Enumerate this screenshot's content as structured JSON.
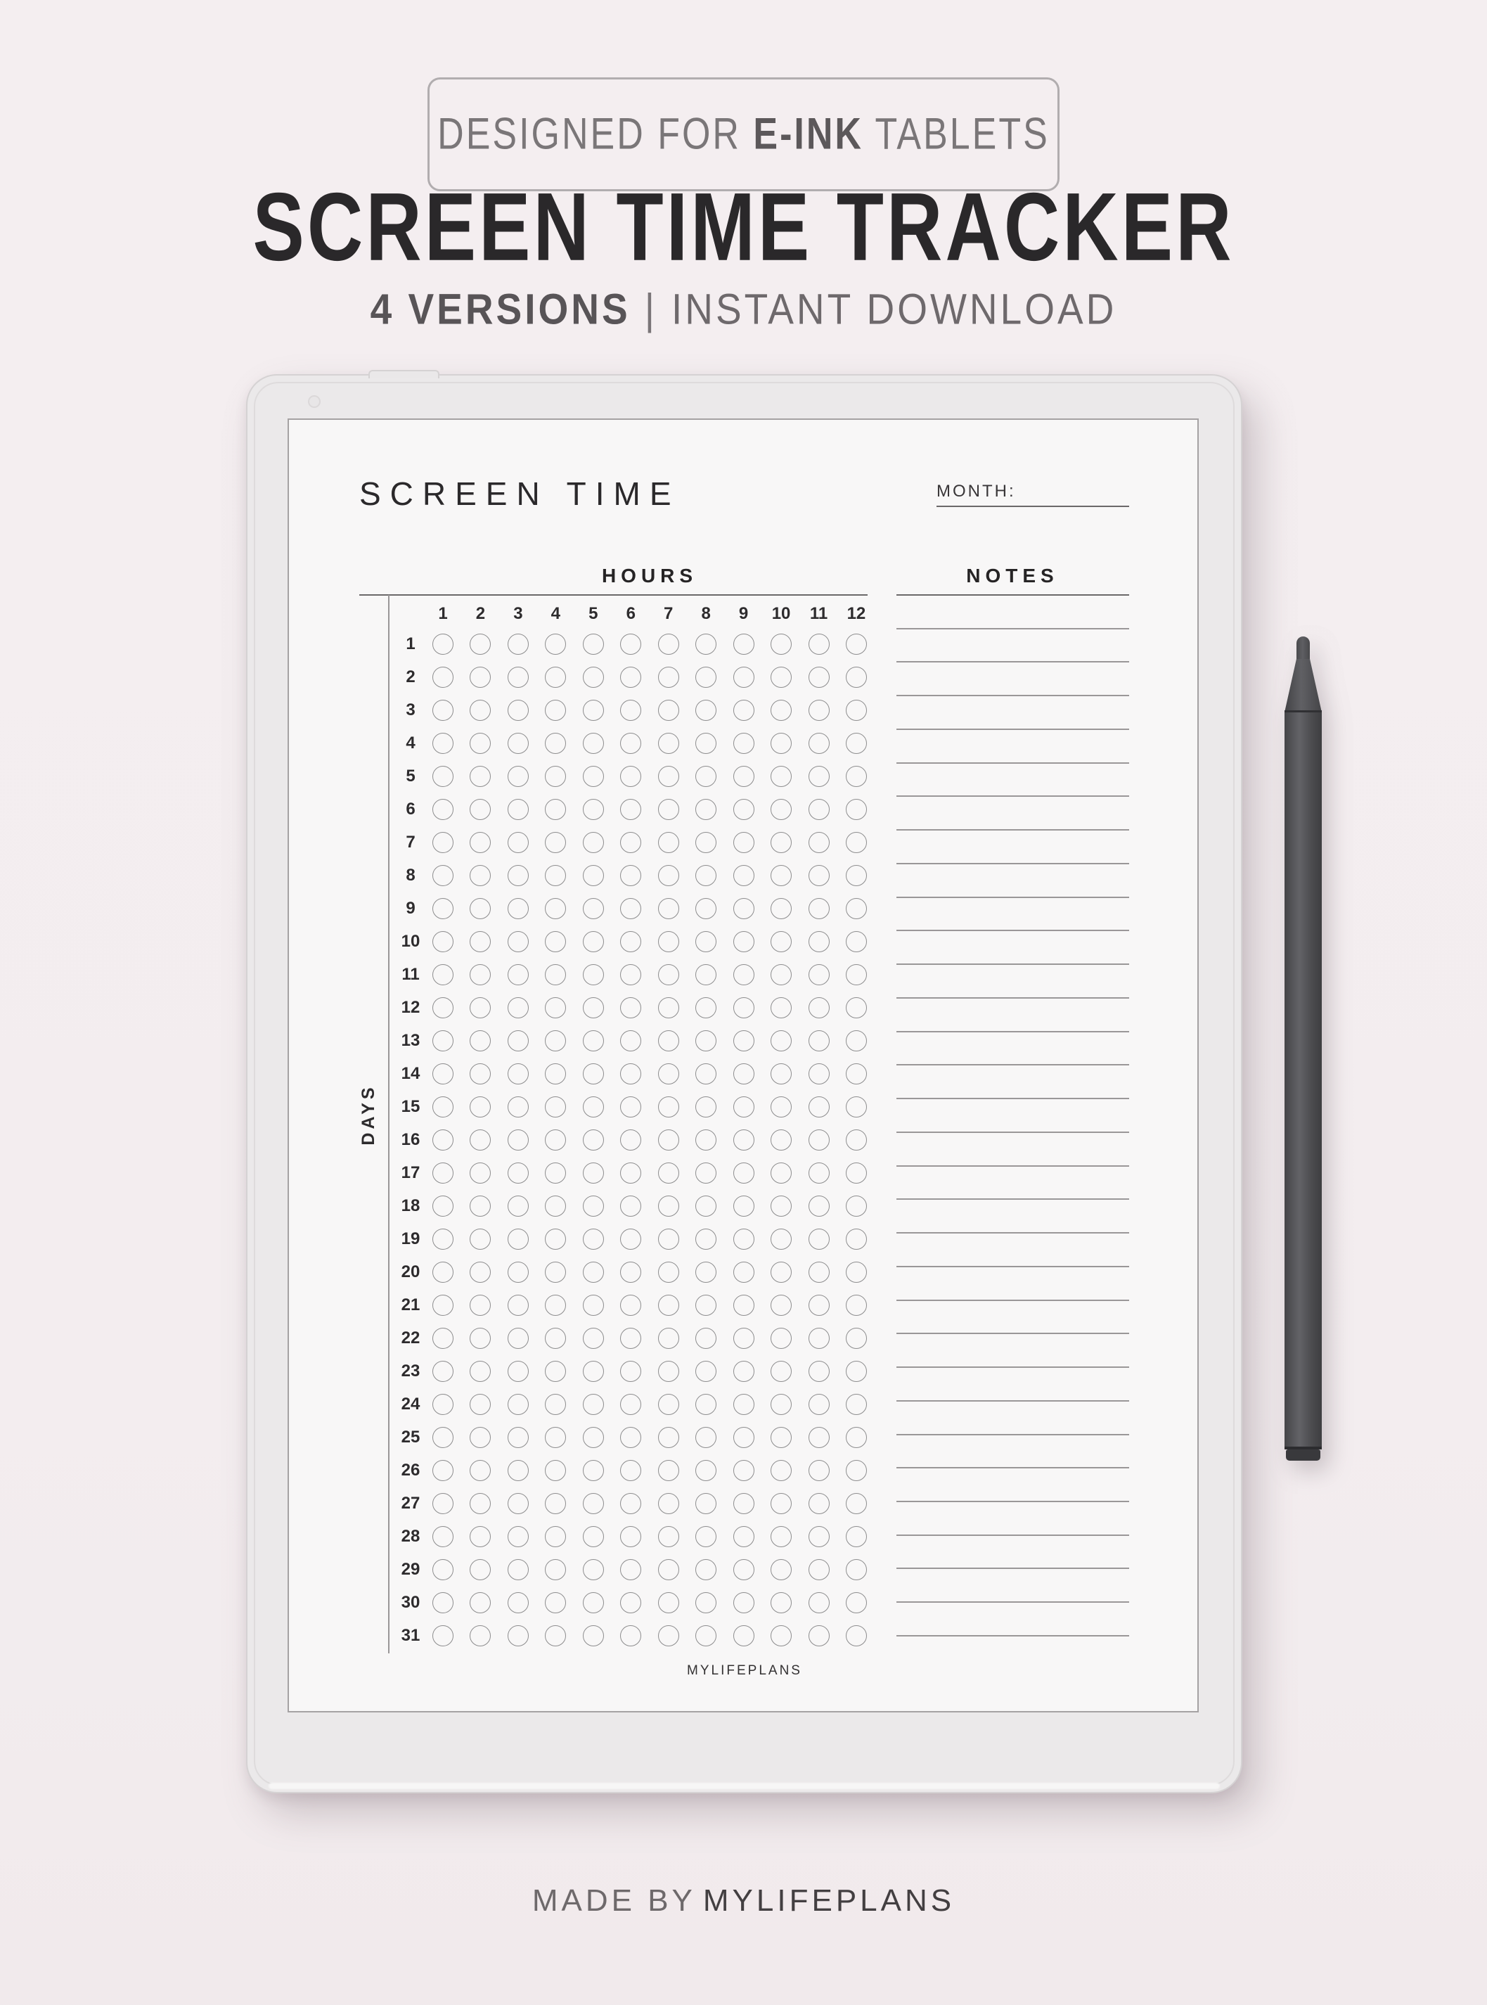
{
  "badge": {
    "text_prefix": "DESIGNED FOR ",
    "text_bold": "E-INK",
    "text_suffix": " TABLETS"
  },
  "header": {
    "title": "SCREEN TIME TRACKER",
    "subtitle_left": "4 VERSIONS",
    "subtitle_separator": "|",
    "subtitle_right": "INSTANT DOWNLOAD"
  },
  "tablet": {
    "screen_title": "SCREEN TIME",
    "month_label": "MONTH:",
    "hours_label": "HOURS",
    "notes_label": "NOTES",
    "days_label": "DAYS",
    "hour_columns": [
      "1",
      "2",
      "3",
      "4",
      "5",
      "6",
      "7",
      "8",
      "9",
      "10",
      "11",
      "12"
    ],
    "day_rows": [
      "1",
      "2",
      "3",
      "4",
      "5",
      "6",
      "7",
      "8",
      "9",
      "10",
      "11",
      "12",
      "13",
      "14",
      "15",
      "16",
      "17",
      "18",
      "19",
      "20",
      "21",
      "22",
      "23",
      "24",
      "25",
      "26",
      "27",
      "28",
      "29",
      "30",
      "31"
    ],
    "footer_brand": "MYLIFEPLANS"
  },
  "caption": {
    "prefix": "MADE BY",
    "brand": "MYLIFEPLANS"
  },
  "colors": {
    "page_background": "#f3edef",
    "tablet_bezel": "#ebe9ea",
    "screen_background": "#f8f7f7",
    "line_dark": "#6b6869",
    "line_light": "#9a9798",
    "circle_stroke": "#8d8d8e",
    "text_dark": "#2a282a"
  }
}
